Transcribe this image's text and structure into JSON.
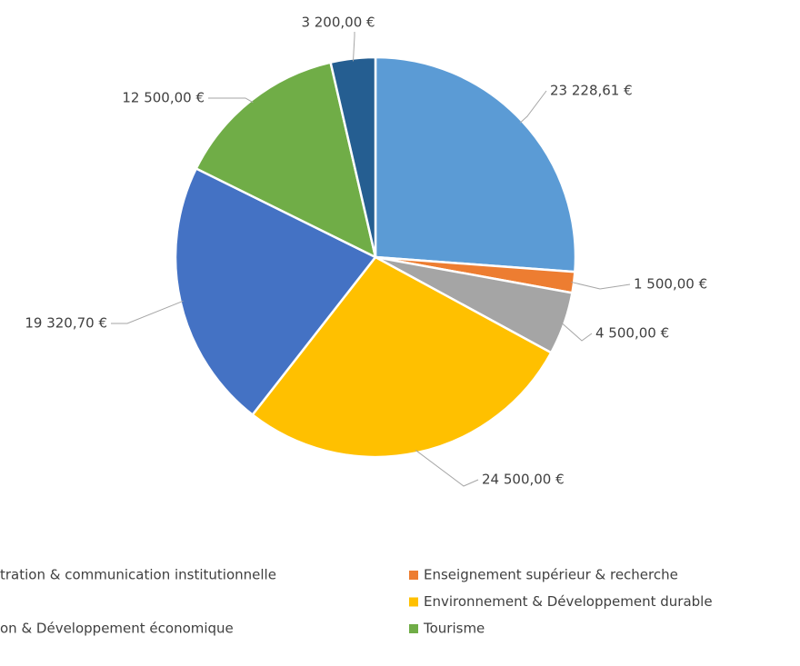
{
  "chart_data": {
    "type": "pie",
    "categories": [
      "tration & communication institutionnelle",
      "Enseignement supérieur & recherche",
      null,
      "Environnement & Développement durable",
      "on & Développement économique",
      "Tourisme",
      null
    ],
    "values": [
      23228.61,
      1500,
      4500,
      24500,
      19320.7,
      12500,
      3200
    ],
    "value_labels": [
      "23 228,61 €",
      "1 500,00 €",
      "4 500,00 €",
      "24 500,00 €",
      "19 320,70 €",
      "12 500,00 €",
      "3 200,00 €"
    ],
    "colors": [
      "#5b9bd5",
      "#ed7d31",
      "#a5a5a5",
      "#ffc000",
      "#4472c4",
      "#70ad47",
      "#255e91"
    ]
  }
}
